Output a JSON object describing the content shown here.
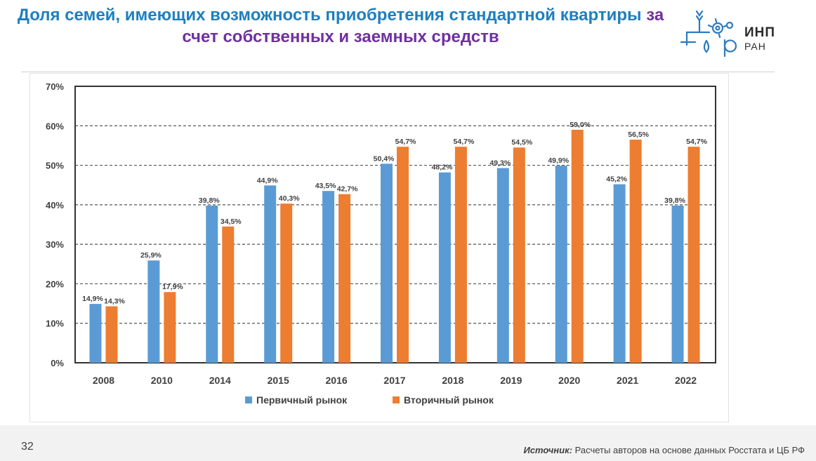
{
  "title": {
    "part1": "Доля семей, имеющих возможность приобретения стандартной квартиры",
    "part2": "за счет собственных и заемных средств"
  },
  "logo": {
    "line1": "ИНП",
    "line2": "РАН"
  },
  "footer": {
    "page_number": "32",
    "source_label": "Источник:",
    "source_text": "Расчеты авторов на основе данных Росстата и ЦБ РФ"
  },
  "colors": {
    "primary": "#5b9bd5",
    "secondary": "#ed7d31",
    "title_blue": "#1e7fbf",
    "title_purple": "#7030a0"
  },
  "chart_data": {
    "type": "bar",
    "categories": [
      "2008",
      "2010",
      "2014",
      "2015",
      "2016",
      "2017",
      "2018",
      "2019",
      "2020",
      "2021",
      "2022"
    ],
    "series": [
      {
        "name": "Первичный рынок",
        "color": "#5b9bd5",
        "values": [
          14.9,
          25.9,
          39.8,
          44.9,
          43.5,
          50.4,
          48.2,
          49.3,
          49.9,
          45.2,
          39.8
        ],
        "labels": [
          "14,9%",
          "25,9%",
          "39,8%",
          "44,9%",
          "43,5%",
          "50,4%",
          "48,2%",
          "49,3%",
          "49,9%",
          "45,2%",
          "39,8%"
        ]
      },
      {
        "name": "Вторичный рынок",
        "color": "#ed7d31",
        "values": [
          14.3,
          17.9,
          34.5,
          40.3,
          42.7,
          54.7,
          54.7,
          54.5,
          59.0,
          56.5,
          54.7
        ],
        "labels": [
          "14,3%",
          "17,9%",
          "34,5%",
          "40,3%",
          "42,7%",
          "54,7%",
          "54,7%",
          "54,5%",
          "59,0%",
          "56,5%",
          "54,7%"
        ]
      }
    ],
    "y_ticks": [
      "0%",
      "10%",
      "20%",
      "30%",
      "40%",
      "50%",
      "60%",
      "70%"
    ],
    "ylim": [
      0,
      70
    ],
    "grid": "dashed horizontal",
    "legend": "bottom"
  }
}
